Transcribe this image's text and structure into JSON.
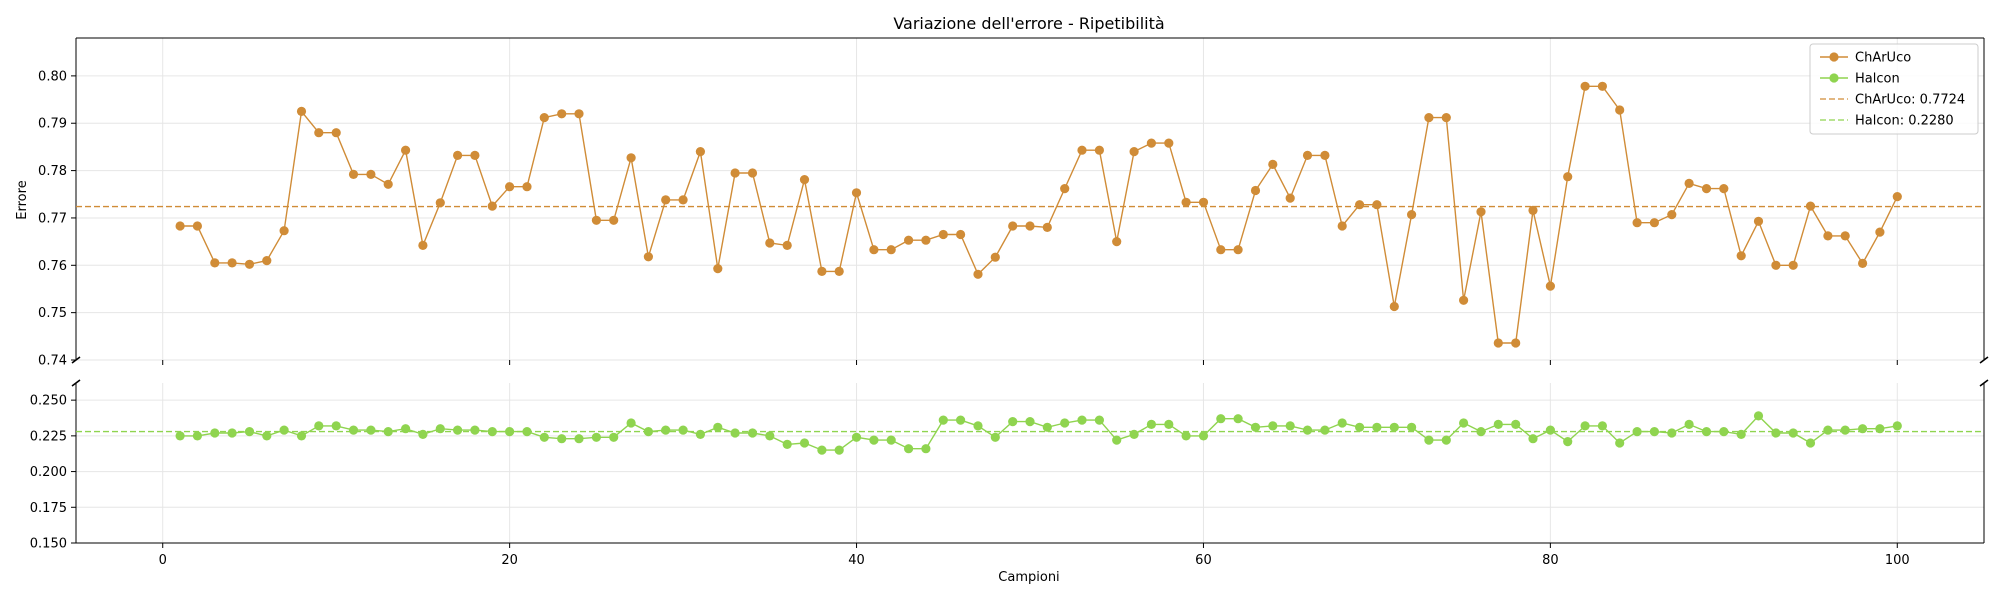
{
  "chart_data": {
    "type": "line",
    "layout": "broken-y-axis",
    "title": "Variazione dell'errore - Ripetibilità",
    "xlabel": "Campioni",
    "ylabel": "Errore",
    "xlim": [
      -5,
      105
    ],
    "xticks": [
      0,
      20,
      40,
      60,
      80,
      100
    ],
    "grid": true,
    "legend_position": "top-right",
    "panels": [
      {
        "ylim": [
          0.74,
          0.808
        ],
        "yticks": [
          0.74,
          0.75,
          0.76,
          0.77,
          0.78,
          0.79,
          0.8
        ],
        "tick_decimals": 2
      },
      {
        "ylim": [
          0.15,
          0.262
        ],
        "yticks": [
          0.15,
          0.175,
          0.2,
          0.225,
          0.25
        ],
        "tick_decimals": 3
      }
    ],
    "series": [
      {
        "name": "ChArUco",
        "color": "#d08c37",
        "marker": "circle",
        "panel": 0,
        "x": [
          1,
          2,
          3,
          4,
          5,
          6,
          7,
          8,
          9,
          10,
          11,
          12,
          13,
          14,
          15,
          16,
          17,
          18,
          19,
          20,
          21,
          22,
          23,
          24,
          25,
          26,
          27,
          28,
          29,
          30,
          31,
          32,
          33,
          34,
          35,
          36,
          37,
          38,
          39,
          40,
          41,
          42,
          43,
          44,
          45,
          46,
          47,
          48,
          49,
          50,
          51,
          52,
          53,
          54,
          55,
          56,
          57,
          58,
          59,
          60,
          61,
          62,
          63,
          64,
          65,
          66,
          67,
          68,
          69,
          70,
          71,
          72,
          73,
          74,
          75,
          76,
          77,
          78,
          79,
          80,
          81,
          82,
          83,
          84,
          85,
          86,
          87,
          88,
          89,
          90,
          91,
          92,
          93,
          94,
          95,
          96,
          97,
          98,
          99,
          100
        ],
        "y": [
          0.7683,
          0.7683,
          0.7605,
          0.7605,
          0.7602,
          0.761,
          0.7673,
          0.7925,
          0.788,
          0.788,
          0.7792,
          0.7792,
          0.7771,
          0.7843,
          0.7642,
          0.7732,
          0.7832,
          0.7832,
          0.7725,
          0.7766,
          0.7766,
          0.7912,
          0.792,
          0.792,
          0.7695,
          0.7695,
          0.7827,
          0.7618,
          0.7738,
          0.7738,
          0.784,
          0.7593,
          0.7795,
          0.7795,
          0.7647,
          0.7642,
          0.7781,
          0.7587,
          0.7587,
          0.7753,
          0.7633,
          0.7633,
          0.7653,
          0.7653,
          0.7665,
          0.7665,
          0.7581,
          0.7617,
          0.7683,
          0.7683,
          0.768,
          0.7762,
          0.7843,
          0.7843,
          0.765,
          0.784,
          0.7858,
          0.7858,
          0.7733,
          0.7733,
          0.7633,
          0.7633,
          0.7758,
          0.7813,
          0.7742,
          0.7832,
          0.7832,
          0.7683,
          0.7728,
          0.7728,
          0.7513,
          0.7707,
          0.7912,
          0.7912,
          0.7526,
          0.7713,
          0.7436,
          0.7436,
          0.7716,
          0.7556,
          0.7787,
          0.7978,
          0.7978,
          0.7928,
          0.769,
          0.769,
          0.7707,
          0.7773,
          0.7762,
          0.7762,
          0.762,
          0.7693,
          0.76,
          0.76,
          0.7725,
          0.7662,
          0.7662,
          0.7604,
          0.767,
          0.7745
        ]
      },
      {
        "name": "Halcon",
        "color": "#8fd44f",
        "marker": "circle",
        "panel": 1,
        "x": [
          1,
          2,
          3,
          4,
          5,
          6,
          7,
          8,
          9,
          10,
          11,
          12,
          13,
          14,
          15,
          16,
          17,
          18,
          19,
          20,
          21,
          22,
          23,
          24,
          25,
          26,
          27,
          28,
          29,
          30,
          31,
          32,
          33,
          34,
          35,
          36,
          37,
          38,
          39,
          40,
          41,
          42,
          43,
          44,
          45,
          46,
          47,
          48,
          49,
          50,
          51,
          52,
          53,
          54,
          55,
          56,
          57,
          58,
          59,
          60,
          61,
          62,
          63,
          64,
          65,
          66,
          67,
          68,
          69,
          70,
          71,
          72,
          73,
          74,
          75,
          76,
          77,
          78,
          79,
          80,
          81,
          82,
          83,
          84,
          85,
          86,
          87,
          88,
          89,
          90,
          91,
          92,
          93,
          94,
          95,
          96,
          97,
          98,
          99,
          100
        ],
        "y": [
          0.225,
          0.225,
          0.227,
          0.227,
          0.228,
          0.225,
          0.229,
          0.225,
          0.232,
          0.232,
          0.229,
          0.229,
          0.228,
          0.23,
          0.226,
          0.23,
          0.229,
          0.229,
          0.228,
          0.228,
          0.228,
          0.224,
          0.223,
          0.223,
          0.224,
          0.224,
          0.234,
          0.228,
          0.229,
          0.229,
          0.226,
          0.231,
          0.227,
          0.227,
          0.225,
          0.219,
          0.22,
          0.215,
          0.215,
          0.224,
          0.222,
          0.222,
          0.216,
          0.216,
          0.236,
          0.236,
          0.232,
          0.224,
          0.235,
          0.235,
          0.231,
          0.234,
          0.236,
          0.236,
          0.222,
          0.226,
          0.233,
          0.233,
          0.225,
          0.225,
          0.237,
          0.237,
          0.231,
          0.232,
          0.232,
          0.229,
          0.229,
          0.234,
          0.231,
          0.231,
          0.231,
          0.231,
          0.222,
          0.222,
          0.234,
          0.228,
          0.233,
          0.233,
          0.223,
          0.229,
          0.221,
          0.232,
          0.232,
          0.22,
          0.228,
          0.228,
          0.227,
          0.233,
          0.228,
          0.228,
          0.226,
          0.239,
          0.227,
          0.227,
          0.22,
          0.229,
          0.229,
          0.23,
          0.23,
          0.232
        ]
      }
    ],
    "reference_lines": [
      {
        "label": "ChArUco: 0.7724",
        "value": 0.7724,
        "color": "#d08c37",
        "style": "dashed",
        "panel": 0
      },
      {
        "label": "Halcon: 0.2280",
        "value": 0.228,
        "color": "#8fd44f",
        "style": "dashed",
        "panel": 1
      }
    ]
  }
}
